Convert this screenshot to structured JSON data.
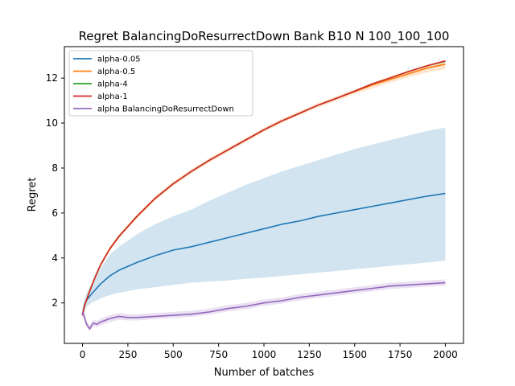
{
  "chart_data": {
    "type": "line",
    "title": "Regret BalancingDoResurrectDown Bank B10 N 100_100_100",
    "xlabel": "Number of batches",
    "ylabel": "Regret",
    "xlim": [
      -100,
      2100
    ],
    "ylim": [
      0.2,
      13.4
    ],
    "xticks": [
      0,
      250,
      500,
      750,
      1000,
      1250,
      1500,
      1750,
      2000
    ],
    "yticks": [
      2,
      4,
      6,
      8,
      10,
      12
    ],
    "grid": false,
    "legend_position": "top-left",
    "series": [
      {
        "name": "alpha-0.05",
        "color": "#1f77b4",
        "x": [
          0,
          10,
          25,
          50,
          100,
          150,
          200,
          300,
          400,
          500,
          600,
          700,
          800,
          900,
          1000,
          1100,
          1200,
          1300,
          1400,
          1500,
          1600,
          1700,
          1800,
          1900,
          2000
        ],
        "y": [
          1.5,
          1.9,
          2.15,
          2.4,
          2.85,
          3.2,
          3.45,
          3.8,
          4.1,
          4.35,
          4.5,
          4.7,
          4.9,
          5.1,
          5.3,
          5.5,
          5.65,
          5.85,
          6.0,
          6.15,
          6.3,
          6.45,
          6.6,
          6.75,
          6.87
        ],
        "lower": [
          1.3,
          1.6,
          1.85,
          2.0,
          2.2,
          2.35,
          2.45,
          2.6,
          2.7,
          2.8,
          2.9,
          2.95,
          3.0,
          3.07,
          3.13,
          3.2,
          3.27,
          3.35,
          3.42,
          3.5,
          3.57,
          3.65,
          3.72,
          3.8,
          3.88
        ],
        "upper": [
          1.7,
          2.2,
          2.5,
          2.85,
          3.55,
          4.15,
          4.5,
          5.05,
          5.5,
          5.85,
          6.15,
          6.55,
          6.9,
          7.25,
          7.55,
          7.85,
          8.1,
          8.35,
          8.6,
          8.85,
          9.05,
          9.25,
          9.45,
          9.65,
          9.8
        ]
      },
      {
        "name": "alpha-0.5",
        "color": "#ff7f0e",
        "x": [
          0,
          10,
          25,
          50,
          75,
          100,
          150,
          200,
          250,
          300,
          400,
          500,
          600,
          700,
          800,
          900,
          1000,
          1100,
          1200,
          1300,
          1400,
          1500,
          1600,
          1700,
          1800,
          1900,
          2000
        ],
        "y": [
          1.45,
          1.85,
          2.2,
          2.75,
          3.25,
          3.7,
          4.4,
          4.95,
          5.4,
          5.85,
          6.65,
          7.3,
          7.85,
          8.35,
          8.8,
          9.25,
          9.7,
          10.1,
          10.45,
          10.8,
          11.1,
          11.4,
          11.7,
          11.95,
          12.2,
          12.45,
          12.62
        ],
        "lower": [
          1.35,
          1.75,
          2.1,
          2.65,
          3.15,
          3.6,
          4.3,
          4.85,
          5.3,
          5.75,
          6.55,
          7.2,
          7.75,
          8.25,
          8.7,
          9.15,
          9.6,
          10.0,
          10.35,
          10.7,
          11.0,
          11.3,
          11.55,
          11.8,
          12.05,
          12.25,
          12.4
        ],
        "upper": [
          1.55,
          1.95,
          2.3,
          2.85,
          3.35,
          3.8,
          4.5,
          5.05,
          5.5,
          5.95,
          6.75,
          7.4,
          7.95,
          8.45,
          8.9,
          9.35,
          9.8,
          10.2,
          10.55,
          10.9,
          11.2,
          11.5,
          11.8,
          12.1,
          12.35,
          12.6,
          12.8
        ]
      },
      {
        "name": "alpha-4",
        "color": "#2ca02c",
        "x": [
          0,
          10,
          25,
          50,
          75,
          100,
          150,
          200,
          250,
          300,
          400,
          500,
          600,
          700,
          800,
          900,
          1000,
          1100,
          1200,
          1300,
          1400,
          1500,
          1600,
          1700,
          1800,
          1900,
          2000
        ],
        "y": [
          1.45,
          1.85,
          2.2,
          2.75,
          3.25,
          3.7,
          4.4,
          4.95,
          5.4,
          5.85,
          6.65,
          7.3,
          7.85,
          8.35,
          8.8,
          9.25,
          9.7,
          10.1,
          10.45,
          10.8,
          11.1,
          11.42,
          11.75,
          12.02,
          12.3,
          12.55,
          12.75
        ]
      },
      {
        "name": "alpha-1",
        "color": "#d62728",
        "x": [
          0,
          10,
          25,
          50,
          75,
          100,
          150,
          200,
          250,
          300,
          400,
          500,
          600,
          700,
          800,
          900,
          1000,
          1100,
          1200,
          1300,
          1400,
          1500,
          1600,
          1700,
          1800,
          1900,
          2000
        ],
        "y": [
          1.45,
          1.85,
          2.2,
          2.75,
          3.25,
          3.7,
          4.4,
          4.95,
          5.4,
          5.85,
          6.65,
          7.3,
          7.85,
          8.35,
          8.8,
          9.25,
          9.7,
          10.1,
          10.45,
          10.8,
          11.1,
          11.42,
          11.75,
          12.02,
          12.3,
          12.55,
          12.77
        ]
      },
      {
        "name": "alpha BalancingDoResurrectDown",
        "color": "#9467bd",
        "x": [
          0,
          10,
          20,
          30,
          40,
          50,
          60,
          80,
          100,
          150,
          200,
          250,
          300,
          400,
          500,
          600,
          700,
          800,
          900,
          1000,
          1100,
          1200,
          1300,
          1400,
          1500,
          1600,
          1700,
          1800,
          1900,
          2000
        ],
        "y": [
          1.6,
          1.4,
          1.1,
          0.95,
          0.85,
          1.0,
          1.1,
          1.05,
          1.15,
          1.3,
          1.4,
          1.35,
          1.35,
          1.4,
          1.45,
          1.5,
          1.6,
          1.75,
          1.85,
          2.0,
          2.1,
          2.25,
          2.35,
          2.45,
          2.55,
          2.65,
          2.75,
          2.8,
          2.85,
          2.9
        ],
        "lower": [
          1.4,
          1.2,
          0.95,
          0.82,
          0.75,
          0.85,
          0.95,
          0.92,
          1.0,
          1.15,
          1.25,
          1.22,
          1.22,
          1.28,
          1.33,
          1.38,
          1.48,
          1.62,
          1.72,
          1.87,
          1.97,
          2.12,
          2.22,
          2.32,
          2.42,
          2.52,
          2.62,
          2.67,
          2.72,
          2.77
        ],
        "upper": [
          1.8,
          1.6,
          1.25,
          1.1,
          0.98,
          1.15,
          1.25,
          1.2,
          1.3,
          1.45,
          1.55,
          1.5,
          1.5,
          1.55,
          1.6,
          1.65,
          1.75,
          1.9,
          2.0,
          2.15,
          2.25,
          2.4,
          2.5,
          2.6,
          2.7,
          2.8,
          2.9,
          2.95,
          3.0,
          3.05
        ]
      }
    ]
  }
}
